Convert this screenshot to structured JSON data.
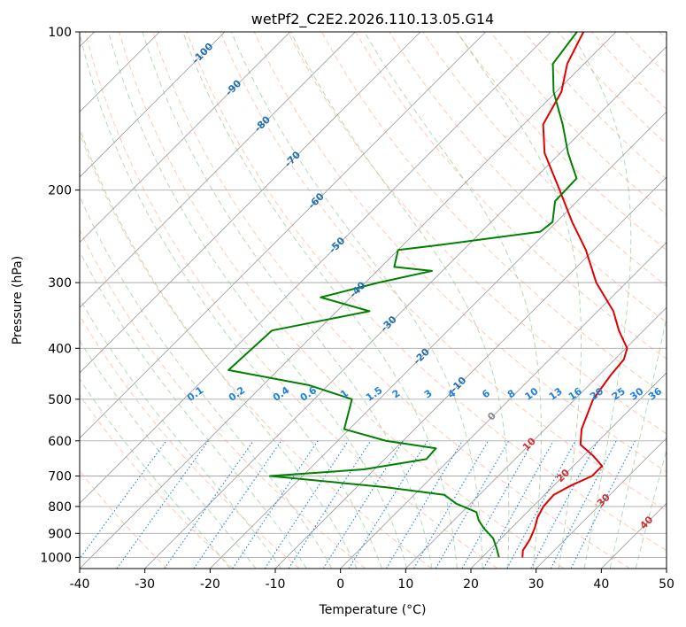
{
  "chart_data": {
    "type": "skew-t log-p",
    "title": "wetPf2_C2E2.2026.110.13.05.G14",
    "xlabel": "Temperature (°C)",
    "ylabel": "Pressure (hPa)",
    "xlim": [
      -40,
      50
    ],
    "ylim": [
      1050,
      100
    ],
    "y_scale": "log",
    "x_ticks": [
      "-40",
      "-30",
      "-20",
      "-10",
      "0",
      "10",
      "20",
      "30",
      "40",
      "50"
    ],
    "y_ticks": [
      "100",
      "200",
      "300",
      "400",
      "500",
      "600",
      "700",
      "800",
      "900",
      "1000"
    ],
    "grid": true,
    "series": [
      {
        "color": "#e00000",
        "role": "temperature",
        "points": [
          {
            "p": 1000,
            "t": 26.2
          },
          {
            "p": 970,
            "t": 25.2
          },
          {
            "p": 925,
            "t": 24.6
          },
          {
            "p": 880,
            "t": 23.6
          },
          {
            "p": 840,
            "t": 22.4
          },
          {
            "p": 800,
            "t": 21.6
          },
          {
            "p": 760,
            "t": 21.4
          },
          {
            "p": 730,
            "t": 22.6
          },
          {
            "p": 700,
            "t": 24.4
          },
          {
            "p": 670,
            "t": 24.4
          },
          {
            "p": 640,
            "t": 21.4
          },
          {
            "p": 610,
            "t": 17.8
          },
          {
            "p": 570,
            "t": 15.6
          },
          {
            "p": 500,
            "t": 12.8
          },
          {
            "p": 450,
            "t": 11.8
          },
          {
            "p": 420,
            "t": 11.4
          },
          {
            "p": 400,
            "t": 10.2
          },
          {
            "p": 370,
            "t": 6.2
          },
          {
            "p": 340,
            "t": 2.4
          },
          {
            "p": 300,
            "t": -4.6
          },
          {
            "p": 260,
            "t": -11.2
          },
          {
            "p": 230,
            "t": -17.6
          },
          {
            "p": 200,
            "t": -24.4
          },
          {
            "p": 170,
            "t": -32.4
          },
          {
            "p": 150,
            "t": -37.0
          },
          {
            "p": 130,
            "t": -39.2
          },
          {
            "p": 115,
            "t": -42.6
          },
          {
            "p": 100,
            "t": -45.0
          }
        ]
      },
      {
        "color": "#008000",
        "role": "dewpoint",
        "points": [
          {
            "p": 1000,
            "t": 22.6
          },
          {
            "p": 960,
            "t": 20.8
          },
          {
            "p": 920,
            "t": 18.8
          },
          {
            "p": 880,
            "t": 15.8
          },
          {
            "p": 850,
            "t": 13.8
          },
          {
            "p": 820,
            "t": 12.2
          },
          {
            "p": 790,
            "t": 7.8
          },
          {
            "p": 760,
            "t": 4.6
          },
          {
            "p": 735,
            "t": -5.6
          },
          {
            "p": 700,
            "t": -25.0
          },
          {
            "p": 680,
            "t": -11.6
          },
          {
            "p": 650,
            "t": -3.6
          },
          {
            "p": 620,
            "t": -3.8
          },
          {
            "p": 600,
            "t": -12.6
          },
          {
            "p": 570,
            "t": -20.8
          },
          {
            "p": 540,
            "t": -22.2
          },
          {
            "p": 500,
            "t": -24.2
          },
          {
            "p": 470,
            "t": -33.0
          },
          {
            "p": 440,
            "t": -47.6
          },
          {
            "p": 370,
            "t": -47.0
          },
          {
            "p": 340,
            "t": -35.0
          },
          {
            "p": 320,
            "t": -44.6
          },
          {
            "p": 300,
            "t": -38.0
          },
          {
            "p": 285,
            "t": -31.6
          },
          {
            "p": 280,
            "t": -38.0
          },
          {
            "p": 260,
            "t": -40.0
          },
          {
            "p": 255,
            "t": -35.0
          },
          {
            "p": 240,
            "t": -21.0
          },
          {
            "p": 230,
            "t": -20.6
          },
          {
            "p": 210,
            "t": -23.4
          },
          {
            "p": 190,
            "t": -23.6
          },
          {
            "p": 170,
            "t": -28.8
          },
          {
            "p": 150,
            "t": -34.0
          },
          {
            "p": 130,
            "t": -40.4
          },
          {
            "p": 115,
            "t": -44.8
          },
          {
            "p": 100,
            "t": -46.0
          }
        ]
      }
    ],
    "mixing_ratio_labels": [
      "0.1",
      "0.2",
      "0.4",
      "0.6",
      "1",
      "1.5",
      "2",
      "3",
      "4",
      "6",
      "8",
      "10",
      "13",
      "16",
      "20",
      "25",
      "30",
      "36"
    ],
    "mixing_ratio_values": [
      0.1,
      0.2,
      0.4,
      0.6,
      1,
      1.5,
      2,
      3,
      4,
      6,
      8,
      10,
      13,
      16,
      20,
      25,
      30,
      36
    ],
    "isotherm_labels_blue": [
      "-100",
      "-90",
      "-80",
      "-70",
      "-60",
      "-50",
      "-40",
      "-30",
      "-20",
      "-10"
    ],
    "isotherm_labels_blue_values": [
      -100,
      -90,
      -80,
      -70,
      -60,
      -50,
      -40,
      -30,
      -20,
      -10
    ],
    "isotherm_labels_gray": [
      "0"
    ],
    "isotherm_labels_red": [
      "10",
      "20",
      "30",
      "40"
    ],
    "isotherm_labels_red_values": [
      10,
      20,
      30,
      40
    ],
    "colors": {
      "temperature": "#e00000",
      "dewpoint": "#008000",
      "dry_adiabat": "#ff8a5c",
      "moist_adiabat": "#77bb77",
      "mixing_ratio": "#1f80e0",
      "isotherm": "#999999",
      "isotherm_label_cold": "#1f6fb5",
      "isotherm_label_zero": "#888888",
      "isotherm_label_warm": "#d03030"
    }
  }
}
